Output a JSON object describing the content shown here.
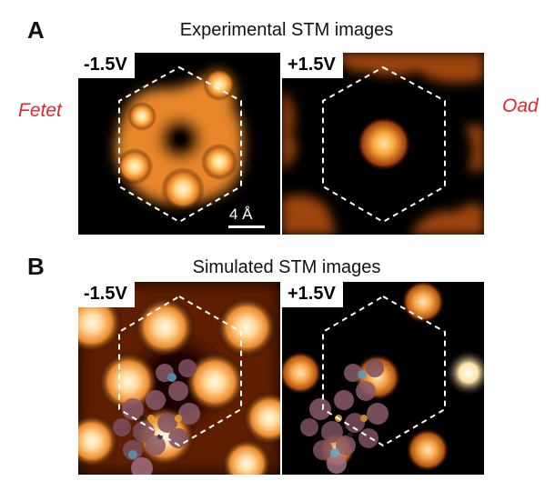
{
  "panel_a": {
    "letter": "A",
    "title": "Experimental STM images",
    "left_bias": "-1.5V",
    "right_bias": "+1.5V",
    "scale_label": "4 Å"
  },
  "panel_b": {
    "letter": "B",
    "title": "Simulated STM images",
    "left_bias": "-1.5V",
    "right_bias": "+1.5V"
  },
  "side_labels": {
    "left": "Fetet",
    "right": "Oad"
  },
  "colors": {
    "label_red": "#e0262e",
    "stm_bright": "#fff3d6",
    "stm_mid": "#f39a3a",
    "stm_dark": "#000000"
  }
}
